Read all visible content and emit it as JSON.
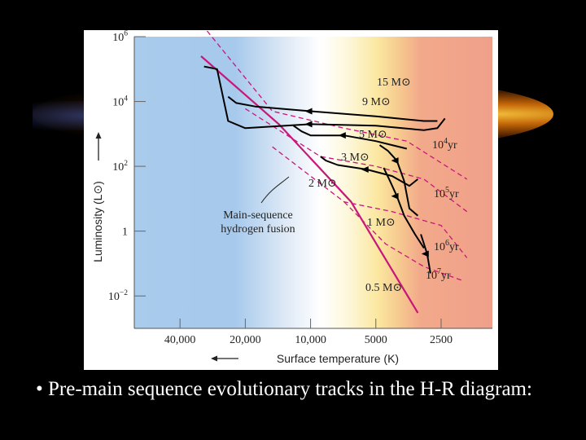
{
  "slide": {
    "caption": "• Pre-main sequence evolutionary tracks in the H-R diagram:"
  },
  "colors": {
    "background": "#000000",
    "main_sequence": "#c8177a",
    "isochrone": "#c8177a",
    "track": "#000000",
    "plot_hot": "#9fc4ea",
    "plot_warm": "#fbf0a8",
    "plot_cool": "#f2a07e"
  },
  "chart_data": {
    "type": "line",
    "title": "",
    "xlabel": "Surface temperature (K)",
    "ylabel": "Luminosity (L⊙)",
    "x_scale": "log",
    "y_scale": "log",
    "xlim": [
      65000,
      1450
    ],
    "ylim": [
      0.001,
      1000000
    ],
    "x_ticks": [
      {
        "value": 40000,
        "label": "40,000"
      },
      {
        "value": 20000,
        "label": "20,000"
      },
      {
        "value": 10000,
        "label": "10,000"
      },
      {
        "value": 5000,
        "label": "5000"
      },
      {
        "value": 2500,
        "label": "2500"
      }
    ],
    "y_ticks": [
      {
        "value": 1000000,
        "base": "10",
        "exp": "6"
      },
      {
        "value": 10000,
        "base": "10",
        "exp": "4"
      },
      {
        "value": 100,
        "base": "10",
        "exp": "2"
      },
      {
        "value": 1,
        "base": "1",
        "exp": ""
      },
      {
        "value": 0.01,
        "base": "10",
        "exp": "−2"
      }
    ],
    "main_sequence": {
      "name": "Main-sequence hydrogen fusion",
      "label_lines": [
        "Main-sequence",
        "hydrogen fusion"
      ],
      "points": [
        [
          32000,
          250000
        ],
        [
          14000,
          2000
        ],
        [
          6500,
          8
        ],
        [
          3200,
          0.003
        ]
      ]
    },
    "tracks": [
      {
        "mass": "15",
        "label": "15 M⊙",
        "points": [
          [
            2400,
            3000
          ],
          [
            2600,
            1500
          ],
          [
            3000,
            1300
          ],
          [
            5000,
            1800
          ],
          [
            10000,
            2000
          ],
          [
            20000,
            1500
          ],
          [
            24000,
            2500
          ],
          [
            27000,
            100000
          ],
          [
            31000,
            120000
          ]
        ]
      },
      {
        "mass": "9",
        "label": "9 M⊙",
        "points": [
          [
            2600,
            2500
          ],
          [
            3000,
            2500
          ],
          [
            5000,
            3500
          ],
          [
            10000,
            5000
          ],
          [
            18000,
            7000
          ],
          [
            22000,
            9000
          ],
          [
            24000,
            14000
          ]
        ]
      },
      {
        "mass": "5",
        "label": "5 M⊙",
        "points": [
          [
            3600,
            350
          ],
          [
            4200,
            450
          ],
          [
            5000,
            600
          ],
          [
            7000,
            900
          ],
          [
            10000,
            900
          ],
          [
            11000,
            1200
          ],
          [
            12000,
            1800
          ]
        ]
      },
      {
        "mass": "3",
        "label": "3 M⊙",
        "points": [
          [
            3200,
            40
          ],
          [
            3500,
            25
          ],
          [
            4200,
            50
          ],
          [
            5500,
            80
          ],
          [
            7500,
            110
          ],
          [
            8500,
            150
          ],
          [
            9000,
            200
          ]
        ]
      },
      {
        "mass": "2",
        "label": "2 M⊙",
        "points": [
          [
            3200,
            3
          ],
          [
            3500,
            5
          ],
          [
            3700,
            35
          ],
          [
            4000,
            150
          ],
          [
            4400,
            300
          ],
          [
            4800,
            450
          ]
        ]
      },
      {
        "mass": "1",
        "label": "1 M⊙",
        "points": [
          [
            3000,
            0.3
          ],
          [
            3300,
            0.8
          ],
          [
            3700,
            3
          ],
          [
            4000,
            12
          ],
          [
            4300,
            35
          ],
          [
            4600,
            90
          ]
        ]
      },
      {
        "mass": "0.5",
        "label": "0.5 M⊙",
        "points": [
          [
            2800,
            0.05
          ],
          [
            2900,
            0.2
          ],
          [
            3100,
            0.8
          ]
        ]
      }
    ],
    "isochrones": [
      {
        "label": "10⁴yr",
        "base": "10",
        "exp": "4",
        "points": [
          [
            30000,
            1500000
          ],
          [
            15000,
            5000
          ],
          [
            7000,
            1500
          ],
          [
            3600,
            600
          ],
          [
            1900,
            40
          ]
        ]
      },
      {
        "label": "10⁵yr",
        "base": "10",
        "exp": "5",
        "points": [
          [
            20000,
            6000
          ],
          [
            9000,
            200
          ],
          [
            5000,
            100
          ],
          [
            3000,
            40
          ],
          [
            1900,
            4
          ]
        ]
      },
      {
        "label": "10⁶yr",
        "base": "10",
        "exp": "6",
        "points": [
          [
            15000,
            400
          ],
          [
            7000,
            8
          ],
          [
            4200,
            4
          ],
          [
            2500,
            1.5
          ],
          [
            1900,
            0.15
          ]
        ]
      },
      {
        "label": "10⁷yr",
        "base": "10",
        "exp": "7",
        "points": [
          [
            7000,
            8
          ],
          [
            4500,
            0.4
          ],
          [
            3000,
            0.08
          ],
          [
            2000,
            0.03
          ]
        ]
      }
    ]
  }
}
